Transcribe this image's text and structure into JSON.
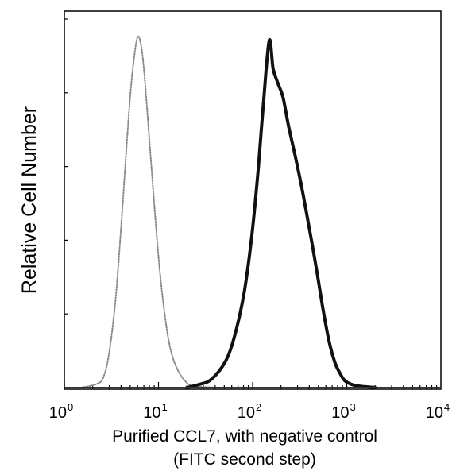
{
  "chart_data": {
    "type": "line",
    "chart_kind": "flow cytometry histogram",
    "xscale": "log",
    "xlim": [
      1,
      10000
    ],
    "x_ticks": [
      {
        "base": "10",
        "exp": "0",
        "value": 1
      },
      {
        "base": "10",
        "exp": "1",
        "value": 10
      },
      {
        "base": "10",
        "exp": "2",
        "value": 100
      },
      {
        "base": "10",
        "exp": "3",
        "value": 1000
      },
      {
        "base": "10",
        "exp": "4",
        "value": 10000
      }
    ],
    "ylabel": "Relative Cell Number",
    "xlabel_line1": "Purified CCL7, with negative control",
    "xlabel_line2": "(FITC second step)",
    "ylim": [
      0,
      1
    ],
    "grid": false,
    "series": [
      {
        "role": "negative-control",
        "style": "dotted",
        "color": "#8a8a8a",
        "x": [
          1.5,
          2.2,
          2.6,
          3.0,
          3.5,
          4.0,
          4.5,
          5.0,
          5.5,
          6.0,
          6.5,
          7.0,
          7.5,
          8.0,
          9.0,
          10.0,
          11.0,
          12.5,
          14.0,
          16.0,
          19.0,
          23.0,
          40.0
        ],
        "y": [
          0.0,
          0.01,
          0.03,
          0.1,
          0.25,
          0.45,
          0.65,
          0.82,
          0.93,
          0.99,
          0.97,
          0.9,
          0.8,
          0.7,
          0.52,
          0.37,
          0.26,
          0.15,
          0.09,
          0.05,
          0.02,
          0.005,
          0.0
        ]
      },
      {
        "role": "ccl7",
        "style": "solid",
        "color": "#111111",
        "x": [
          20,
          28,
          35,
          45,
          55,
          65,
          75,
          85,
          100,
          115,
          130,
          150,
          165,
          185,
          210,
          240,
          280,
          330,
          400,
          480,
          560,
          650,
          750,
          850,
          950,
          1100,
          1300,
          2000
        ],
        "y": [
          0.0,
          0.01,
          0.02,
          0.05,
          0.09,
          0.15,
          0.22,
          0.3,
          0.45,
          0.62,
          0.8,
          0.98,
          0.9,
          0.86,
          0.82,
          0.74,
          0.66,
          0.57,
          0.45,
          0.33,
          0.22,
          0.13,
          0.07,
          0.04,
          0.02,
          0.01,
          0.005,
          0.0
        ]
      }
    ]
  }
}
